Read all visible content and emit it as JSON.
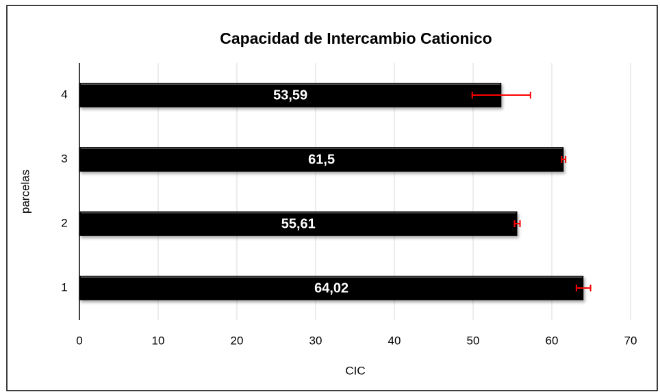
{
  "chart_data": {
    "type": "bar",
    "orientation": "horizontal",
    "title": "Capacidad de Intercambio Cationico",
    "xlabel": "CIC",
    "ylabel": "parcelas",
    "categories": [
      "1",
      "2",
      "3",
      "4"
    ],
    "values": [
      64.02,
      55.61,
      61.5,
      53.59
    ],
    "value_labels": [
      "64,02",
      "55,61",
      "61,5",
      "53,59"
    ],
    "errors": [
      0.9,
      0.35,
      0.25,
      3.7
    ],
    "color": "#000000",
    "error_color": "#ff0000",
    "xlim": [
      0,
      70
    ],
    "xticks": [
      0,
      10,
      20,
      30,
      40,
      50,
      60,
      70
    ],
    "grid": true
  }
}
